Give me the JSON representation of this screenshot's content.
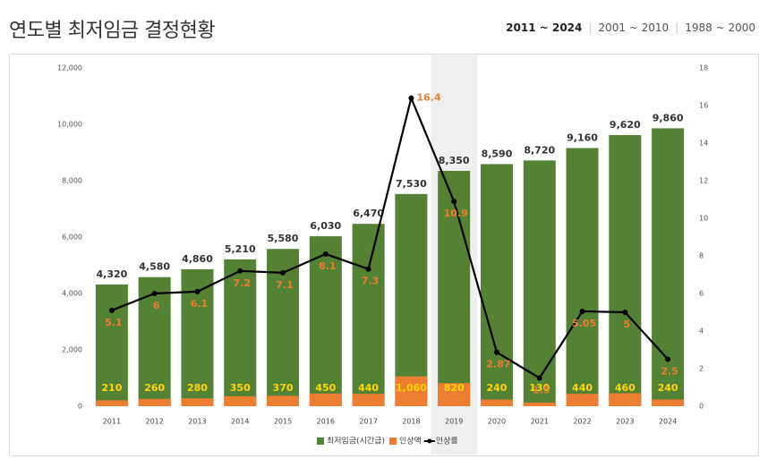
{
  "title": "연도별 최저임금 결정현황",
  "tabs": [
    "2011 ~ 2024",
    "2001 ~ 2010",
    "1988 ~ 2000"
  ],
  "chart_data": {
    "type": "bar",
    "categories": [
      "2011",
      "2012",
      "2013",
      "2014",
      "2015",
      "2016",
      "2017",
      "2018",
      "2019",
      "2020",
      "2021",
      "2022",
      "2023",
      "2024"
    ],
    "highlight": "2019",
    "series": [
      {
        "name": "최저임금(시간급)",
        "color": "#548235",
        "values": [
          4320,
          4580,
          4860,
          5210,
          5580,
          6030,
          6470,
          7530,
          8350,
          8590,
          8720,
          9160,
          9620,
          9860
        ],
        "value_labels": [
          "4,320",
          "4,580",
          "4,860",
          "5,210",
          "5,580",
          "6,030",
          "6,470",
          "7,530",
          "8,350",
          "8,590",
          "8,720",
          "9,160",
          "9,620",
          "9,860"
        ]
      },
      {
        "name": "인상액",
        "color": "#ed7d31",
        "values": [
          210,
          260,
          280,
          350,
          370,
          450,
          440,
          1060,
          820,
          240,
          130,
          440,
          460,
          240
        ],
        "value_labels": [
          "210",
          "260",
          "280",
          "350",
          "370",
          "450",
          "440",
          "1,060",
          "820",
          "240",
          "130",
          "440",
          "460",
          "240"
        ]
      },
      {
        "name": "인상률",
        "color": "#000000",
        "type": "line",
        "axis": "y2",
        "values": [
          5.1,
          6,
          6.1,
          7.2,
          7.1,
          8.1,
          7.3,
          16.4,
          10.9,
          2.87,
          1.5,
          5.05,
          5,
          2.5
        ]
      }
    ],
    "ylim": [
      0,
      12000
    ],
    "yticks": [
      0,
      {
        "value": 2000,
        "label": "2,000"
      },
      {
        "value": 4000,
        "label": "4,000"
      },
      {
        "value": 6000,
        "label": "6,000"
      },
      {
        "value": 8000,
        "label": "8,000"
      },
      {
        "value": 10000,
        "label": "10,000"
      },
      {
        "value": 12000,
        "label": "12,000"
      }
    ],
    "y2lim": [
      0,
      18
    ],
    "y2ticks": [
      0,
      2,
      4,
      6,
      8,
      10,
      12,
      14,
      16,
      18
    ]
  }
}
